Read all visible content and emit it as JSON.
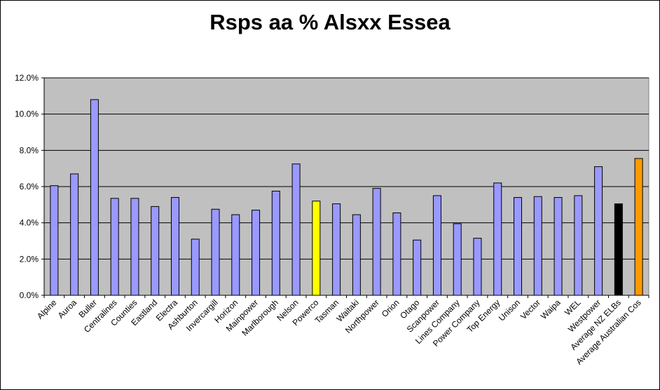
{
  "chart_data": {
    "type": "bar",
    "title": "Rsps aa % Alsxx Essea",
    "xlabel": "",
    "ylabel": "",
    "ylim": [
      0,
      12
    ],
    "y_tick_values": [
      0,
      2,
      4,
      6,
      8,
      10,
      12
    ],
    "y_tick_labels": [
      "0.0%",
      "2.0%",
      "4.0%",
      "6.0%",
      "8.0%",
      "10.0%",
      "12.0%"
    ],
    "grid": true,
    "legend": "none",
    "categories": [
      "Alpine",
      "Auroa",
      "Buller",
      "Centralines",
      "Counties",
      "Eastland",
      "Electra",
      "Ashburton",
      "Invercargill",
      "Horizon",
      "Mainpower",
      "Marlborough",
      "Nelson",
      "Powerco",
      "Tasman",
      "Waitaki",
      "Northpower",
      "Orion",
      "Otago",
      "Scanpower",
      "Lines Company",
      "Power Company",
      "Top Energy",
      "Unison",
      "Vector",
      "Waipa",
      "WEL",
      "Westpower",
      "Average NZ ELBs",
      "Average Australian Cos"
    ],
    "values": [
      6.05,
      6.7,
      10.8,
      5.35,
      5.35,
      4.9,
      5.4,
      3.1,
      4.75,
      4.45,
      4.7,
      5.75,
      7.25,
      5.2,
      5.05,
      4.45,
      5.9,
      4.55,
      3.05,
      5.5,
      3.95,
      3.15,
      6.2,
      5.4,
      5.45,
      5.4,
      5.5,
      7.1,
      5.05,
      7.55
    ],
    "bar_colors": [
      "#9999ff",
      "#9999ff",
      "#9999ff",
      "#9999ff",
      "#9999ff",
      "#9999ff",
      "#9999ff",
      "#9999ff",
      "#9999ff",
      "#9999ff",
      "#9999ff",
      "#9999ff",
      "#9999ff",
      "#ffff00",
      "#9999ff",
      "#9999ff",
      "#9999ff",
      "#9999ff",
      "#9999ff",
      "#9999ff",
      "#9999ff",
      "#9999ff",
      "#9999ff",
      "#9999ff",
      "#9999ff",
      "#9999ff",
      "#9999ff",
      "#9999ff",
      "#000000",
      "#ff9900"
    ],
    "plot_background": "#c0c0c0",
    "gridline_color": "#000000"
  }
}
